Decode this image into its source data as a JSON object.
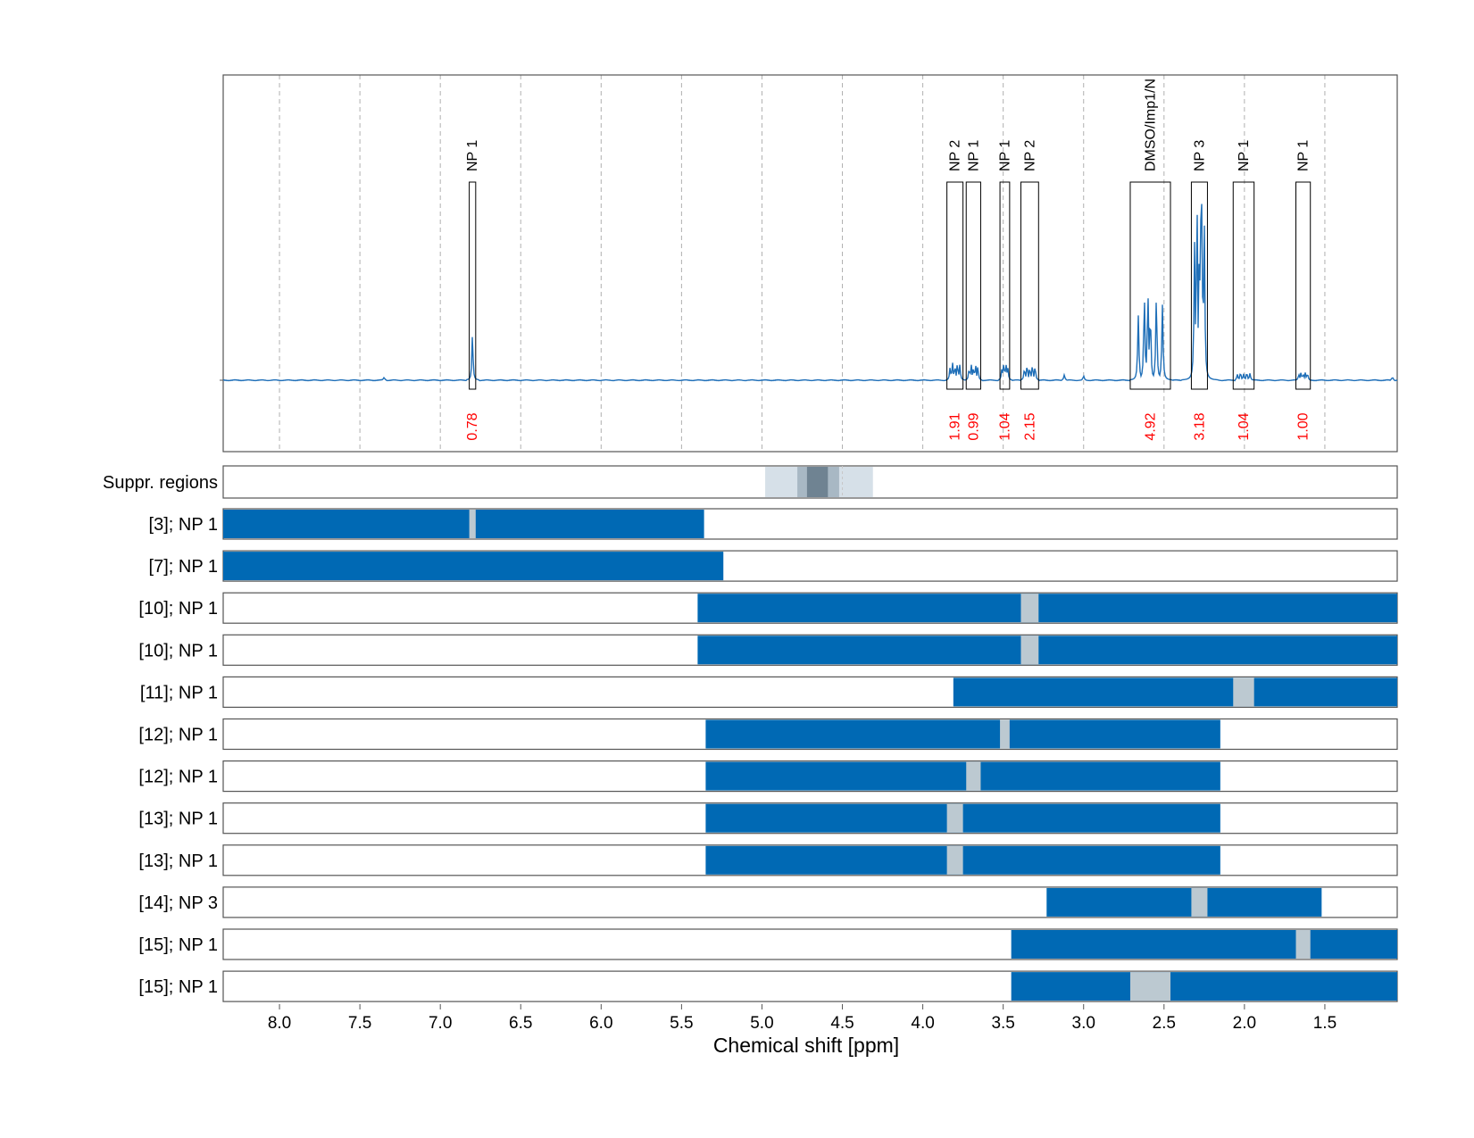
{
  "chart_data": {
    "type": "nmr-spectrum",
    "xlabel": "Chemical shift [ppm]",
    "xlim": [
      8.35,
      1.05
    ],
    "x_reversed": true,
    "xticks": [
      8.0,
      7.5,
      7.0,
      6.5,
      6.0,
      5.5,
      5.0,
      4.5,
      4.0,
      3.5,
      3.0,
      2.5,
      2.0,
      1.5
    ],
    "xtick_labels": [
      "8.0",
      "7.5",
      "7.0",
      "6.5",
      "6.0",
      "5.5",
      "5.0",
      "4.5",
      "4.0",
      "3.5",
      "3.0",
      "2.5",
      "2.0",
      "1.5"
    ],
    "grid": "vertical dashed",
    "colors": {
      "spectrum": "#1f6fb8",
      "bar": "#0069b4",
      "gap": "#bcc9d1",
      "integral": "#ff0000",
      "suppr_light": "#d6e0e8",
      "suppr_mid": "#a8b8c4",
      "suppr_dark": "#6f8392"
    },
    "peaks": [
      {
        "label": "NP 1",
        "range": [
          6.82,
          6.78
        ],
        "integral": "0.78",
        "height": 0.24
      },
      {
        "label": "NP 2",
        "range": [
          3.85,
          3.75
        ],
        "integral": "1.91",
        "height": 0.09
      },
      {
        "label": "NP 1",
        "range": [
          3.73,
          3.64
        ],
        "integral": "0.99",
        "height": 0.08
      },
      {
        "label": "NP 1",
        "range": [
          3.52,
          3.46
        ],
        "integral": "1.04",
        "height": 0.08
      },
      {
        "label": "NP 2",
        "range": [
          3.39,
          3.28
        ],
        "integral": "2.15",
        "height": 0.08
      },
      {
        "label": "DMSO/Imp1/N",
        "range": [
          2.71,
          2.46
        ],
        "integral": "4.92",
        "height": 0.44
      },
      {
        "label": "NP 3",
        "range": [
          2.33,
          2.23
        ],
        "integral": "3.18",
        "height": 0.94
      },
      {
        "label": "NP 1",
        "range": [
          2.07,
          1.94
        ],
        "integral": "1.04",
        "height": 0.04
      },
      {
        "label": "NP 1",
        "range": [
          1.68,
          1.59
        ],
        "integral": "1.00",
        "height": 0.04
      }
    ],
    "suppression_regions": {
      "label": "Suppr. regions",
      "light": [
        4.98,
        4.31
      ],
      "mid": [
        4.78,
        4.52
      ],
      "dark": [
        4.72,
        4.59
      ]
    },
    "rows": [
      {
        "label": "[3]; NP 1",
        "bar": [
          8.35,
          5.36
        ],
        "gap": [
          6.82,
          6.78
        ]
      },
      {
        "label": "[7]; NP 1",
        "bar": [
          8.35,
          5.24
        ],
        "gap": null
      },
      {
        "label": "[10]; NP 1",
        "bar": [
          5.4,
          1.05
        ],
        "gap": [
          3.39,
          3.28
        ]
      },
      {
        "label": "[10]; NP 1",
        "bar": [
          5.4,
          1.05
        ],
        "gap": [
          3.39,
          3.28
        ]
      },
      {
        "label": "[11]; NP 1",
        "bar": [
          3.81,
          1.05
        ],
        "gap": [
          2.07,
          1.94
        ]
      },
      {
        "label": "[12]; NP 1",
        "bar": [
          5.35,
          2.15
        ],
        "gap": [
          3.52,
          3.46
        ]
      },
      {
        "label": "[12]; NP 1",
        "bar": [
          5.35,
          2.15
        ],
        "gap": [
          3.73,
          3.64
        ]
      },
      {
        "label": "[13]; NP 1",
        "bar": [
          5.35,
          2.15
        ],
        "gap": [
          3.85,
          3.75
        ]
      },
      {
        "label": "[13]; NP 1",
        "bar": [
          5.35,
          2.15
        ],
        "gap": [
          3.85,
          3.75
        ]
      },
      {
        "label": "[14]; NP 3",
        "bar": [
          3.23,
          1.52
        ],
        "gap": [
          2.33,
          2.23
        ]
      },
      {
        "label": "[15]; NP 1",
        "bar": [
          3.45,
          1.05
        ],
        "gap": [
          1.68,
          1.59
        ]
      },
      {
        "label": "[15]; NP 1",
        "bar": [
          3.45,
          1.05
        ],
        "gap": [
          2.71,
          2.46
        ]
      }
    ]
  }
}
